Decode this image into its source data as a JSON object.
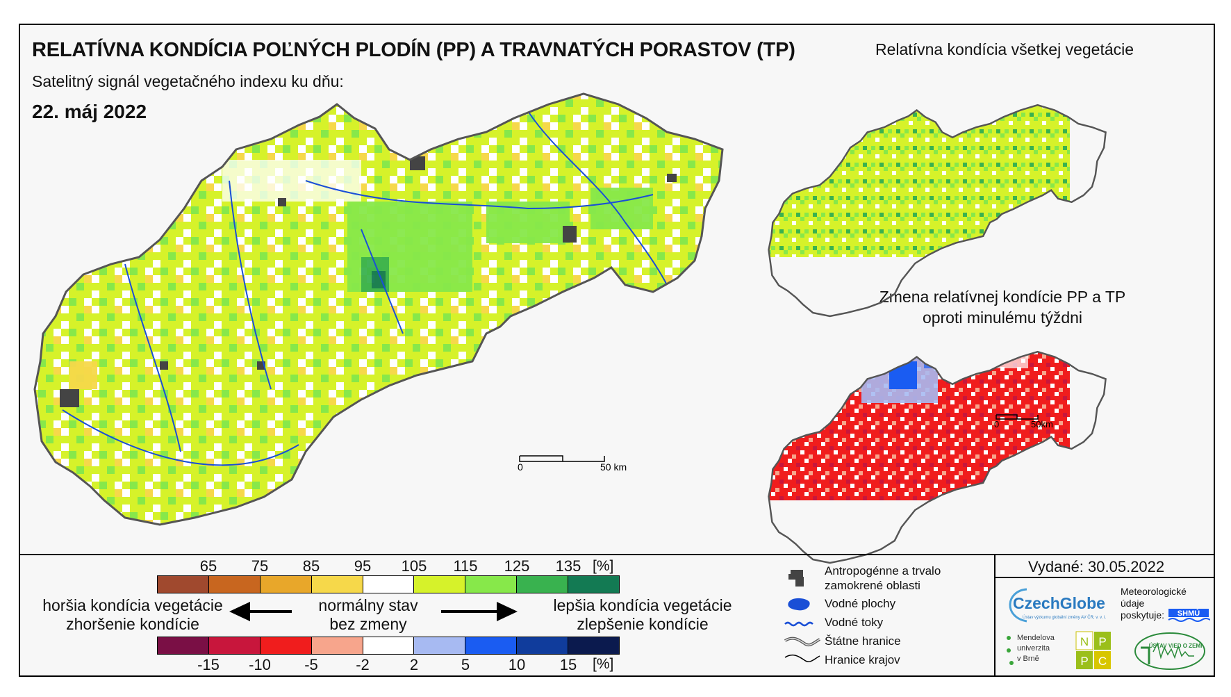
{
  "title": "RELATÍVNA KONDÍCIA POĽNÝCH PLODÍN (PP) A TRAVNATÝCH PORASTOV (TP)",
  "subtitle": "Satelitný signál vegetačného indexu ku dňu:",
  "date": "22. máj 2022",
  "inset1_title": "Relatívna kondícia všetkej vegetácie",
  "inset2_title_line1": "Zmena relatívnej kondície PP a TP",
  "inset2_title_line2": "oproti minulému týždni",
  "scalebar_main": {
    "start": "0",
    "end": "50 km"
  },
  "scalebar_inset": {
    "start": "0",
    "end": "50km"
  },
  "legend": {
    "condition_ticks": [
      "65",
      "75",
      "85",
      "95",
      "105",
      "115",
      "125",
      "135"
    ],
    "condition_unit": "[%]",
    "condition_colors": [
      "#a0492e",
      "#c8661f",
      "#e8a72a",
      "#f6d84a",
      "#ffffff",
      "#d6f22a",
      "#87e84a",
      "#39b24f",
      "#137a53"
    ],
    "change_ticks": [
      "-15",
      "-10",
      "-5",
      "-2",
      "2",
      "5",
      "10",
      "15"
    ],
    "change_unit": "[%]",
    "change_colors": [
      "#7a0f45",
      "#c8163c",
      "#f01d1d",
      "#f7a58c",
      "#ffffff",
      "#a7baf2",
      "#1a5cf2",
      "#103c9c",
      "#0b1a4e"
    ],
    "worse_line1": "horšia kondícia vegetácie",
    "worse_line2": "zhoršenie kondície",
    "normal_line1": "normálny stav",
    "normal_line2": "bez zmeny",
    "better_line1": "lepšia kondícia vegetácie",
    "better_line2": "zlepšenie kondície"
  },
  "key": {
    "urban": "Antropogénne a trvalo zamokrené oblasti",
    "urban_line1": "Antropogénne a trvalo",
    "urban_line2": "zamokrené oblasti",
    "water": "Vodné plochy",
    "rivers": "Vodné toky",
    "state_border": "Štátne hranice",
    "region_border": "Hranice krajov"
  },
  "issued": "Vydané: 30.05.2022",
  "logos": {
    "czechglobe": "CzechGlobe",
    "czechglobe_sub": "Ústav výzkumu globální změny AV ČR, v. v. i.",
    "meteo_line1": "Meteorologické",
    "meteo_line2": "údaje",
    "meteo_line3": "poskytuje:",
    "shmu": "SHMÚ",
    "mendel_line1": "Mendelova",
    "mendel_line2": "univerzita",
    "mendel_line3": "v Brně",
    "nppc": [
      "N",
      "P",
      "P",
      "C"
    ],
    "uvz": "ÚSTAV VIED O ZEMI"
  },
  "colors": {
    "map_base": "#d6f22a",
    "map_green": "#87e84a",
    "map_dark_green": "#39b24f",
    "map_orange": "#f6d84a",
    "river": "#1a4fd6",
    "urban": "#444444"
  }
}
